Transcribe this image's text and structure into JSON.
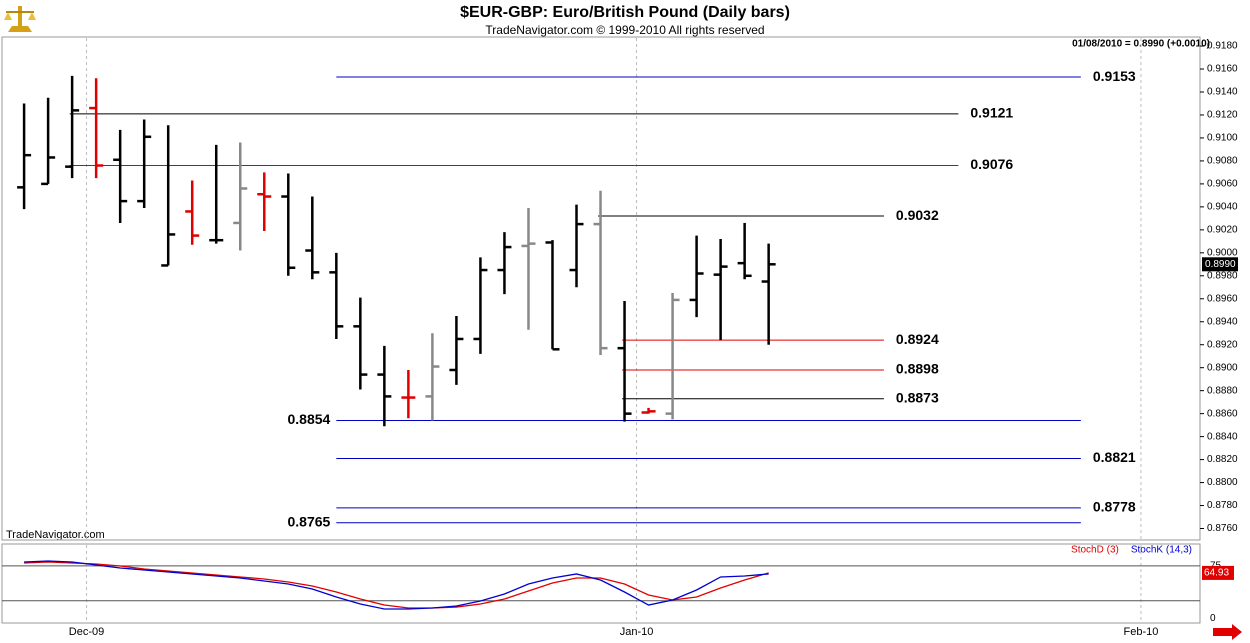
{
  "chart_data": [
    {
      "type": "ohlc",
      "title": "$EUR-GBP:  Euro/British Pound  (Daily bars)",
      "subtitle": "TradeNavigator.com © 1999-2010 All rights reserved",
      "annotation": "01/08/2010 = 0.8990 (+0.0010)",
      "watermark": "TradeNavigator.com",
      "categories": [
        null,
        null,
        null,
        null,
        null,
        null,
        null,
        null,
        null,
        null,
        null,
        null,
        null,
        null,
        null,
        null,
        null,
        null,
        null,
        null,
        null,
        null,
        null,
        null,
        null,
        null,
        null,
        null,
        null,
        null,
        null,
        null
      ],
      "open": [
        0.9057,
        0.906,
        0.9075,
        0.9126,
        0.9081,
        0.9045,
        0.8989,
        0.9036,
        0.9011,
        0.9026,
        0.9051,
        0.9049,
        0.9002,
        0.8983,
        0.8936,
        0.8894,
        0.8874,
        0.8875,
        0.8898,
        0.8925,
        0.8985,
        0.9006,
        0.9009,
        0.8985,
        0.9025,
        0.8917,
        0.8861,
        0.886,
        0.8959,
        0.8981,
        0.8991,
        0.8975
      ],
      "high": [
        0.913,
        0.9135,
        0.9154,
        0.9152,
        0.9107,
        0.9116,
        0.9111,
        0.9063,
        0.9094,
        0.9096,
        0.907,
        0.9069,
        0.9049,
        0.9,
        0.8961,
        0.8919,
        0.8898,
        0.893,
        0.8945,
        0.8996,
        0.9018,
        0.9039,
        0.9011,
        0.9042,
        0.9054,
        0.8958,
        0.8865,
        0.8965,
        0.9015,
        0.9012,
        0.9026,
        0.9008
      ],
      "low": [
        0.9038,
        0.906,
        0.9065,
        0.9065,
        0.9026,
        0.9039,
        0.8989,
        0.9007,
        0.9008,
        0.9002,
        0.9019,
        0.898,
        0.8977,
        0.8925,
        0.8881,
        0.8849,
        0.8856,
        0.8854,
        0.8885,
        0.8912,
        0.8964,
        0.8933,
        0.8916,
        0.897,
        0.8911,
        0.8853,
        0.886,
        0.8855,
        0.8944,
        0.8924,
        0.8977,
        0.892
      ],
      "close": [
        0.9085,
        0.9083,
        0.9124,
        0.9076,
        0.9045,
        0.9101,
        0.9016,
        0.9015,
        0.9011,
        0.9056,
        0.9049,
        0.8987,
        0.8983,
        0.8936,
        0.8894,
        0.8875,
        0.8874,
        0.8901,
        0.8925,
        0.8985,
        0.9005,
        0.9008,
        0.8916,
        0.9025,
        0.8917,
        0.886,
        0.8862,
        0.8959,
        0.8982,
        0.8988,
        0.898,
        0.899
      ],
      "colors": [
        "#000",
        "#000",
        "#000",
        "#e00000",
        "#000",
        "#000",
        "#000",
        "#e00000",
        "#000",
        "#888",
        "#e00000",
        "#000",
        "#000",
        "#000",
        "#000",
        "#000",
        "#e00000",
        "#888",
        "#000",
        "#000",
        "#000",
        "#888",
        "#000",
        "#000",
        "#888",
        "#000",
        "#e00000",
        "#888",
        "#000",
        "#000",
        "#000",
        "#000"
      ],
      "xlim": [
        -0.92,
        48.96
      ],
      "xticks": [
        {
          "value": 2.6,
          "label": "Dec-09"
        },
        {
          "value": 25.5,
          "label": "Jan-10"
        },
        {
          "value": 46.5,
          "label": "Feb-10"
        }
      ],
      "ylim": [
        0.875,
        0.9187
      ],
      "yticks": [
        {
          "value": 0.918,
          "label": "0.9180"
        },
        {
          "value": 0.916,
          "label": "0.9160"
        },
        {
          "value": 0.914,
          "label": "0.9140"
        },
        {
          "value": 0.912,
          "label": "0.9120"
        },
        {
          "value": 0.91,
          "label": "0.9100"
        },
        {
          "value": 0.908,
          "label": "0.9080"
        },
        {
          "value": 0.906,
          "label": "0.9060"
        },
        {
          "value": 0.904,
          "label": "0.9040"
        },
        {
          "value": 0.902,
          "label": "0.9020"
        },
        {
          "value": 0.9,
          "label": "0.9000"
        },
        {
          "value": 0.898,
          "label": "0.8980"
        },
        {
          "value": 0.896,
          "label": "0.8960"
        },
        {
          "value": 0.894,
          "label": "0.8940"
        },
        {
          "value": 0.892,
          "label": "0.8920"
        },
        {
          "value": 0.89,
          "label": "0.8900"
        },
        {
          "value": 0.888,
          "label": "0.8880"
        },
        {
          "value": 0.886,
          "label": "0.8860"
        },
        {
          "value": 0.884,
          "label": "0.8840"
        },
        {
          "value": 0.882,
          "label": "0.8820"
        },
        {
          "value": 0.88,
          "label": "0.8800"
        },
        {
          "value": 0.878,
          "label": "0.8780"
        },
        {
          "value": 0.876,
          "label": "0.8760"
        }
      ],
      "levels": [
        {
          "value": 0.9153,
          "color": "#0000c0",
          "start": 13,
          "end": 44,
          "label_side": "right"
        },
        {
          "value": 0.9121,
          "color": "#000000",
          "start": 1.9,
          "end": 38.9,
          "label_side": "right"
        },
        {
          "value": 0.9076,
          "color": "#e00000",
          "start": 1.9,
          "end": 38.9,
          "label_side": "right"
        },
        {
          "value": 0.9032,
          "color": "#000000",
          "start": 23.9,
          "end": 35.8,
          "label_side": "right"
        },
        {
          "value": 0.8924,
          "color": "#e00000",
          "start": 24.9,
          "end": 35.8,
          "label_side": "right"
        },
        {
          "value": 0.8898,
          "color": "#e00000",
          "start": 24.9,
          "end": 35.8,
          "label_side": "right"
        },
        {
          "value": 0.8873,
          "color": "#000000",
          "start": 24.9,
          "end": 35.8,
          "label_side": "right"
        },
        {
          "value": 0.8854,
          "color": "#0000c0",
          "start": 13,
          "end": 44,
          "label_side": "left"
        },
        {
          "value": 0.8821,
          "color": "#0000c0",
          "start": 13,
          "end": 44,
          "label_side": "right"
        },
        {
          "value": 0.8778,
          "color": "#0000c0",
          "start": 13,
          "end": 44,
          "label_side": "right"
        },
        {
          "value": 0.8765,
          "color": "#0000c0",
          "start": 13,
          "end": 44,
          "label_side": "left"
        }
      ],
      "last_price": {
        "value": 0.899,
        "label": "0.8990"
      }
    },
    {
      "type": "line",
      "series": [
        {
          "name": "StochD (3)",
          "color": "#e00000",
          "values": [
            79.2,
            80.6,
            79.2,
            77.7,
            74.9,
            70.5,
            67.7,
            64.8,
            61.9,
            59.1,
            56.2,
            51.9,
            46.1,
            37.5,
            27.4,
            18.8,
            14.5,
            14.5,
            15.9,
            20.3,
            27.4,
            38.9,
            50.4,
            57.6,
            57.6,
            49.0,
            33.2,
            26.0,
            30.3,
            43.2,
            54.7,
            64.93
          ]
        },
        {
          "name": "StochK (14,3)",
          "color": "#0000d0",
          "values": [
            80.6,
            82.0,
            80.6,
            76.3,
            72.0,
            69.1,
            66.2,
            63.4,
            60.5,
            57.6,
            53.3,
            49.0,
            41.8,
            30.3,
            20.3,
            13.1,
            13.1,
            14.5,
            17.4,
            24.6,
            34.6,
            49.0,
            57.6,
            63.4,
            54.7,
            37.5,
            18.8,
            26.0,
            40.4,
            59.1,
            60.5,
            63.4
          ]
        }
      ],
      "ylim": [
        -7,
        105
      ],
      "yticks": [
        75,
        0
      ],
      "hlines": [
        75,
        25
      ]
    }
  ]
}
